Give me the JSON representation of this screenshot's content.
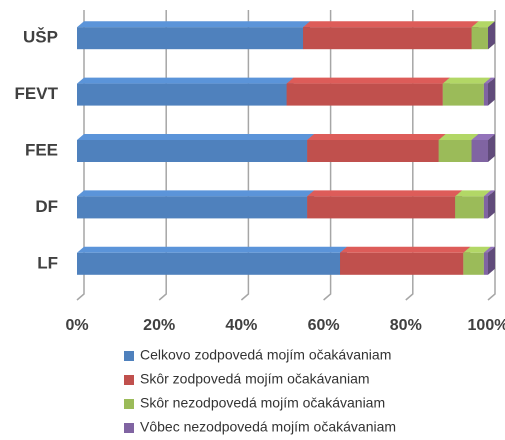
{
  "chart_data": {
    "type": "stacked-bar-horizontal",
    "categories": [
      "UŠP",
      "FEVT",
      "FEE",
      "DF",
      "LF"
    ],
    "series": [
      {
        "name": "Celkovo zodpovedá mojím očakávaniam",
        "color": "#4f81bd",
        "values": [
          55,
          51,
          56,
          56,
          64
        ]
      },
      {
        "name": "Skôr zodpovedá mojím očakávaniam",
        "color": "#c0504d",
        "values": [
          41,
          38,
          32,
          36,
          30
        ]
      },
      {
        "name": "Skôr nezodpovedá mojím očakávaniam",
        "color": "#9bbb59",
        "values": [
          4,
          10,
          8,
          7,
          5
        ]
      },
      {
        "name": "Vôbec nezodpovedá mojím očakávaniam",
        "color": "#8064a2",
        "values": [
          0,
          1,
          4,
          1,
          1
        ]
      }
    ],
    "xlim": [
      0,
      100
    ],
    "xticks": [
      {
        "value": 0,
        "label": "0%"
      },
      {
        "value": 20,
        "label": "20%"
      },
      {
        "value": 40,
        "label": "40%"
      },
      {
        "value": 60,
        "label": "60%"
      },
      {
        "value": 80,
        "label": "80%"
      },
      {
        "value": 100,
        "label": "100%"
      }
    ],
    "grid": true,
    "legend": "bottom"
  }
}
